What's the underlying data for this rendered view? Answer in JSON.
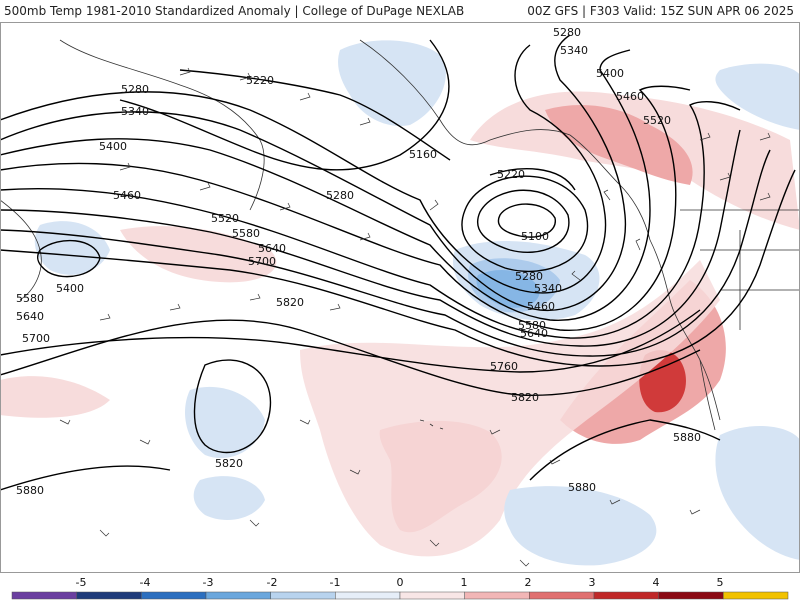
{
  "header": {
    "left_title": "500mb Temp 1981-2010 Standardized Anomaly | College of DuPage NEXLAB",
    "right_title": "00Z GFS | F303 Valid: 15Z SUN APR 06 2025"
  },
  "map": {
    "contour_labels": [
      "5280",
      "5340",
      "5400",
      "5460",
      "5520",
      "5220",
      "5280",
      "5340",
      "5400",
      "5460",
      "5160",
      "5220",
      "5100",
      "5280",
      "5280",
      "5520",
      "5580",
      "5640",
      "5700",
      "5340",
      "5460",
      "5580",
      "5640",
      "5400",
      "5580",
      "5640",
      "5700",
      "5820",
      "5760",
      "5820",
      "5880",
      "5820",
      "5880",
      "5880"
    ]
  },
  "colorbar": {
    "tick_labels": [
      "-5",
      "-4",
      "-3",
      "-2",
      "-1",
      "0",
      "1",
      "2",
      "3",
      "4",
      "5"
    ],
    "colors": [
      "#6b3fa0",
      "#1f3b7a",
      "#2c6fbf",
      "#6ba7dd",
      "#b8d3ee",
      "#e6eef8",
      "#f8e6e6",
      "#f2b6b6",
      "#e07070",
      "#c02828",
      "#8b0a14",
      "#f2c200"
    ]
  },
  "colors": {
    "cold_light": "#d6e4f4",
    "cold_mid": "#9fc3ea",
    "cold_strong": "#3f8fd6",
    "warm_light": "#f7dcdc",
    "warm_mid": "#eea8a8",
    "warm_strong": "#d03a3a"
  }
}
